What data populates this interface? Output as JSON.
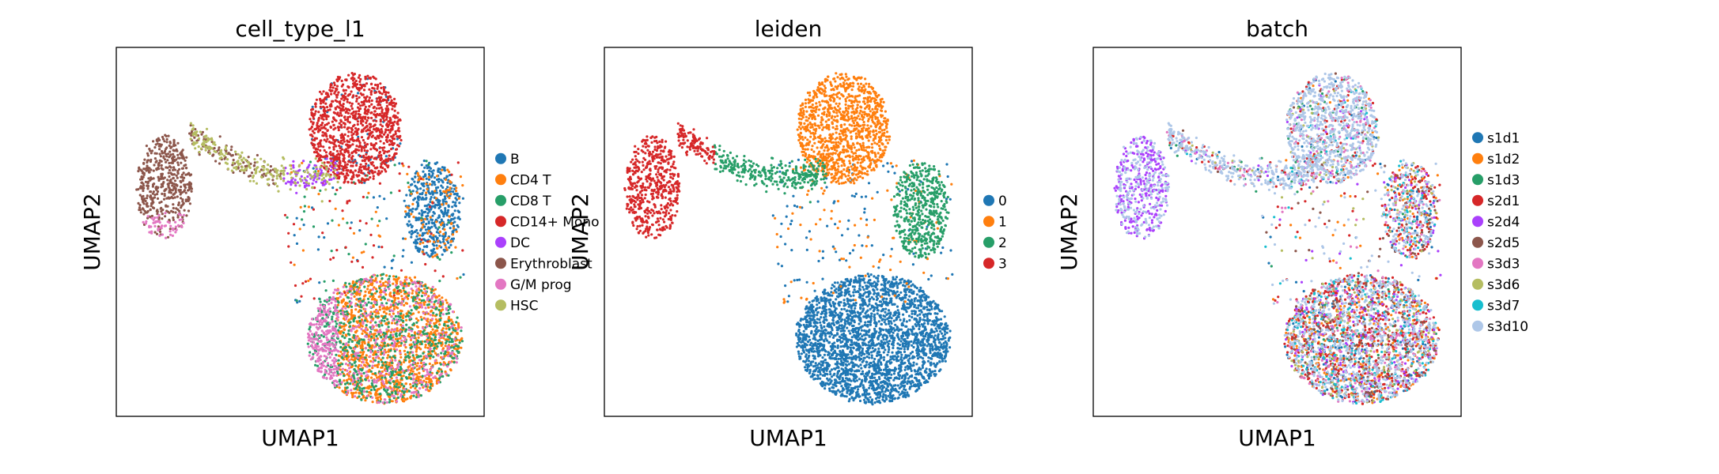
{
  "chart_data": [
    {
      "type": "scatter",
      "title": "cell_type_l1",
      "xlabel": "UMAP1",
      "ylabel": "UMAP2",
      "xlim": [
        0,
        10
      ],
      "ylim": [
        0,
        10
      ],
      "grid": false,
      "legend_position": "right",
      "series": [
        {
          "name": "B",
          "color": "#1f77b4"
        },
        {
          "name": "CD4 T",
          "color": "#ff7f0e"
        },
        {
          "name": "CD8 T",
          "color": "#279e68"
        },
        {
          "name": "CD14+ Mono",
          "color": "#d62728"
        },
        {
          "name": "DC",
          "color": "#aa40fc"
        },
        {
          "name": "Erythroblast",
          "color": "#8c564b"
        },
        {
          "name": "G/M prog",
          "color": "#e377c2"
        },
        {
          "name": "HSC",
          "color": "#b5bd61"
        }
      ]
    },
    {
      "type": "scatter",
      "title": "leiden",
      "xlabel": "UMAP1",
      "ylabel": "UMAP2",
      "xlim": [
        0,
        10
      ],
      "ylim": [
        0,
        10
      ],
      "grid": false,
      "legend_position": "right",
      "series": [
        {
          "name": "0",
          "color": "#1f77b4"
        },
        {
          "name": "1",
          "color": "#ff7f0e"
        },
        {
          "name": "2",
          "color": "#279e68"
        },
        {
          "name": "3",
          "color": "#d62728"
        }
      ]
    },
    {
      "type": "scatter",
      "title": "batch",
      "xlabel": "UMAP1",
      "ylabel": "UMAP2",
      "xlim": [
        0,
        10
      ],
      "ylim": [
        0,
        10
      ],
      "grid": false,
      "legend_position": "right",
      "series": [
        {
          "name": "s1d1",
          "color": "#1f77b4"
        },
        {
          "name": "s1d2",
          "color": "#ff7f0e"
        },
        {
          "name": "s1d3",
          "color": "#279e68"
        },
        {
          "name": "s2d1",
          "color": "#d62728"
        },
        {
          "name": "s2d4",
          "color": "#aa40fc"
        },
        {
          "name": "s2d5",
          "color": "#8c564b"
        },
        {
          "name": "s3d3",
          "color": "#e377c2"
        },
        {
          "name": "s3d6",
          "color": "#b5bd61"
        },
        {
          "name": "s3d7",
          "color": "#17becf"
        },
        {
          "name": "s3d10",
          "color": "#aec7e8"
        }
      ]
    }
  ]
}
